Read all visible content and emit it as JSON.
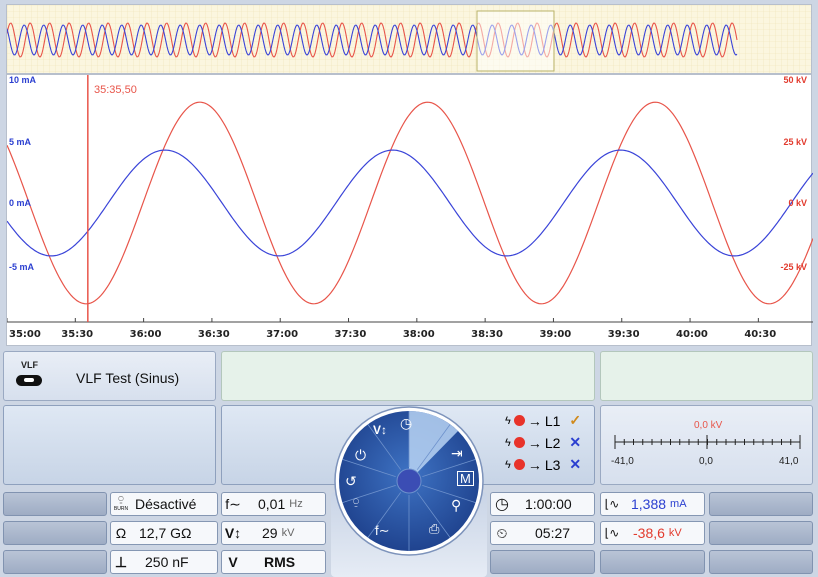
{
  "overview": {
    "title": ""
  },
  "chart_data": {
    "type": "line",
    "x_label_ticks": [
      "35:00",
      "35:30",
      "36:00",
      "36:30",
      "37:00",
      "37:30",
      "38:00",
      "38:30",
      "39:00",
      "39:30",
      "40:00",
      "40:30"
    ],
    "y_left_ticks": [
      "10 mA",
      "5 mA",
      "0 mA",
      "-5 mA"
    ],
    "y_right_ticks": [
      "50 kV",
      "25 kV",
      "0 kV",
      "-25 kV"
    ],
    "y_left_range_mA": [
      -10,
      10
    ],
    "y_right_range_kV": [
      -50,
      50
    ],
    "x_range_s": [
      0,
      354
    ],
    "cursor_label": "35:35,50",
    "cursor_time_s": 35.5,
    "series": [
      {
        "unit": "mA",
        "color": "#3a44d8",
        "amplitude": 4.2,
        "period_s": 100,
        "phase_deg": 200
      },
      {
        "unit": "kV",
        "color": "#e8554a",
        "amplitude": 40,
        "period_s": 100,
        "phase_deg": 145
      }
    ],
    "grid": false
  },
  "vlf": {
    "icon_label": "VLF",
    "test_name": "VLF Test (Sinus)"
  },
  "params": {
    "burn_value": "Désactivé",
    "resistance_symbol": "Ω",
    "resistance_value": "12,7 GΩ",
    "capacitance_value": "250 nF",
    "freq_value": "0,01",
    "freq_unit": "Hz",
    "voltage_value": "29",
    "voltage_unit": "kV",
    "v_mode_symbol": "V",
    "v_mode": "RMS"
  },
  "phases": {
    "items": [
      {
        "label": "L1",
        "status": "✓",
        "status_color": "#d08a1c"
      },
      {
        "label": "L2",
        "status": "✕",
        "status_color": "#2b3fd0"
      },
      {
        "label": "L3",
        "status": "✕",
        "status_color": "#2b3fd0"
      }
    ]
  },
  "scale": {
    "value_label": "0,0 kV",
    "min": "-41,0",
    "mid": "0,0",
    "max": "41,0"
  },
  "timer": {
    "duration": "1:00:00",
    "elapsed": "05:27"
  },
  "measure": {
    "current_value": "1,388",
    "current_unit": "mA",
    "voltage_value": "-38,6",
    "voltage_unit": "kV"
  },
  "dial": {
    "center_color": "#3b4db4",
    "colors": {
      "outer": "#2857a6",
      "inner": "#1f4590"
    }
  }
}
